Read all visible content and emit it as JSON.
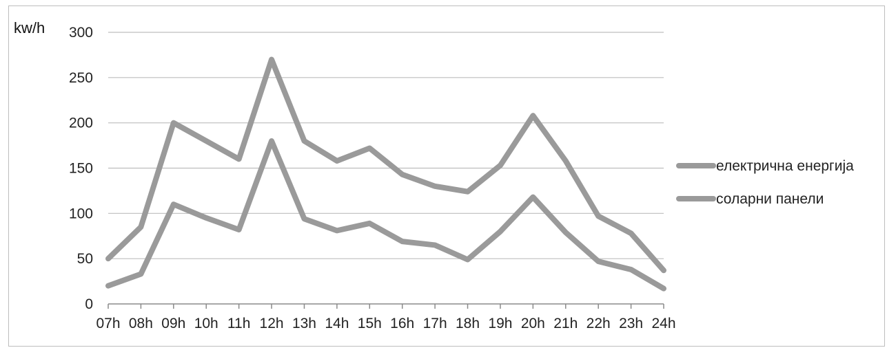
{
  "chart_data": {
    "type": "line",
    "ylabel": "kw/h",
    "ylim": [
      0,
      300
    ],
    "yticks": [
      "0",
      "50",
      "100",
      "150",
      "200",
      "250",
      "300"
    ],
    "categories": [
      "07h",
      "08h",
      "09h",
      "10h",
      "11h",
      "12h",
      "13h",
      "14h",
      "15h",
      "16h",
      "17h",
      "18h",
      "19h",
      "20h",
      "21h",
      "22h",
      "23h",
      "24h"
    ],
    "grid": true,
    "legend_position": "right",
    "series": [
      {
        "name": "електрична енергија",
        "color": "#9a9a9a",
        "values": [
          50,
          85,
          200,
          180,
          160,
          270,
          180,
          158,
          172,
          143,
          130,
          124,
          153,
          208,
          158,
          97,
          78,
          37
        ]
      },
      {
        "name": "соларни панели",
        "color": "#9a9a9a",
        "values": [
          20,
          33,
          110,
          95,
          82,
          180,
          94,
          81,
          89,
          69,
          65,
          49,
          80,
          118,
          79,
          47,
          38,
          17
        ]
      }
    ]
  }
}
